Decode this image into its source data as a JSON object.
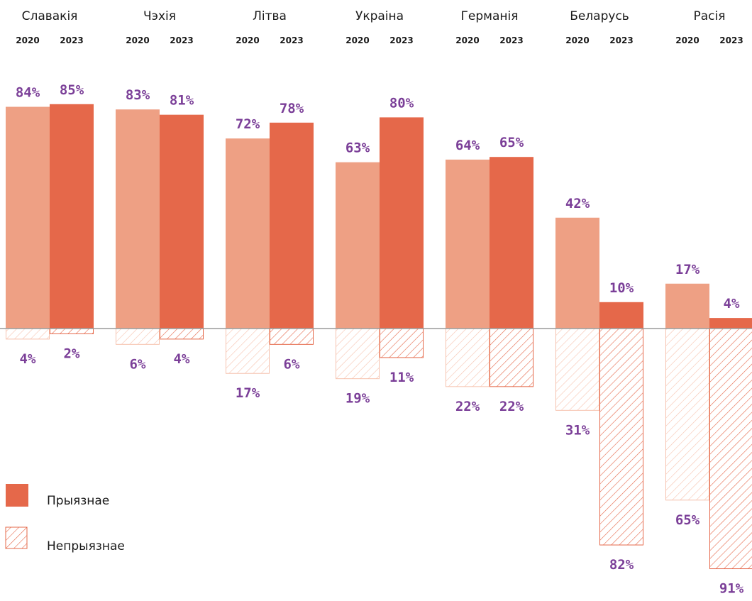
{
  "colors": {
    "fav_2020": "#eea084",
    "fav_2023": "#e5684a",
    "unfav_2020": "#f6c2ae",
    "unfav_2023": "#e5684a",
    "label": "#7b3f98",
    "baseline": "#9a9a9a"
  },
  "legend": {
    "favorable": "Прыязнае",
    "unfavorable": "Непрыязнае"
  },
  "chart_data": {
    "type": "bar",
    "title": "",
    "categories": [
      "Славакія",
      "Чэхія",
      "Літва",
      "Украіна",
      "Германія",
      "Беларусь",
      "Расія"
    ],
    "years": [
      "2020",
      "2023"
    ],
    "series": [
      {
        "name": "Прыязнае",
        "year": "2020",
        "values": [
          84,
          83,
          72,
          63,
          64,
          42,
          17
        ]
      },
      {
        "name": "Прыязнае",
        "year": "2023",
        "values": [
          85,
          81,
          78,
          80,
          65,
          10,
          4
        ]
      },
      {
        "name": "Непрыязнае",
        "year": "2020",
        "values": [
          4,
          6,
          17,
          19,
          22,
          31,
          65
        ]
      },
      {
        "name": "Непрыязнае",
        "year": "2023",
        "values": [
          2,
          4,
          6,
          11,
          22,
          82,
          91
        ]
      }
    ],
    "value_suffix": "%",
    "ylim": [
      -91,
      85
    ],
    "grid": false,
    "legend_position": "bottom-left"
  }
}
